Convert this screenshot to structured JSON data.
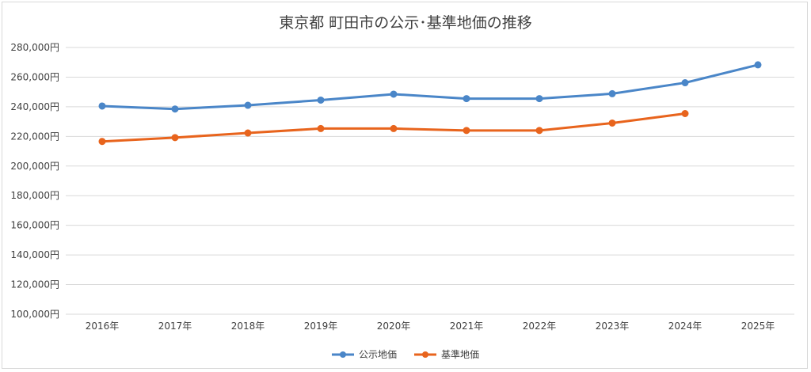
{
  "chart_data": {
    "type": "line",
    "title": "東京都 町田市の公示･基準地価の推移",
    "xlabel": "",
    "ylabel": "",
    "categories": [
      "2016年",
      "2017年",
      "2018年",
      "2019年",
      "2020年",
      "2021年",
      "2022年",
      "2023年",
      "2024年",
      "2025年"
    ],
    "ylim": [
      100000,
      280000
    ],
    "ytick_step": 20000,
    "y_tick_labels": [
      "100,000円",
      "120,000円",
      "140,000円",
      "160,000円",
      "180,000円",
      "200,000円",
      "220,000円",
      "240,000円",
      "260,000円",
      "280,000円"
    ],
    "grid": true,
    "legend_position": "bottom",
    "series": [
      {
        "name": "公示地価",
        "color": "#4a86c8",
        "values": [
          240500,
          238500,
          241000,
          244500,
          248500,
          245500,
          245500,
          248800,
          256200,
          268300
        ]
      },
      {
        "name": "基準地価",
        "color": "#e8641d",
        "values": [
          216600,
          219200,
          222300,
          225300,
          225300,
          224000,
          224000,
          229000,
          235400,
          null
        ]
      }
    ]
  }
}
